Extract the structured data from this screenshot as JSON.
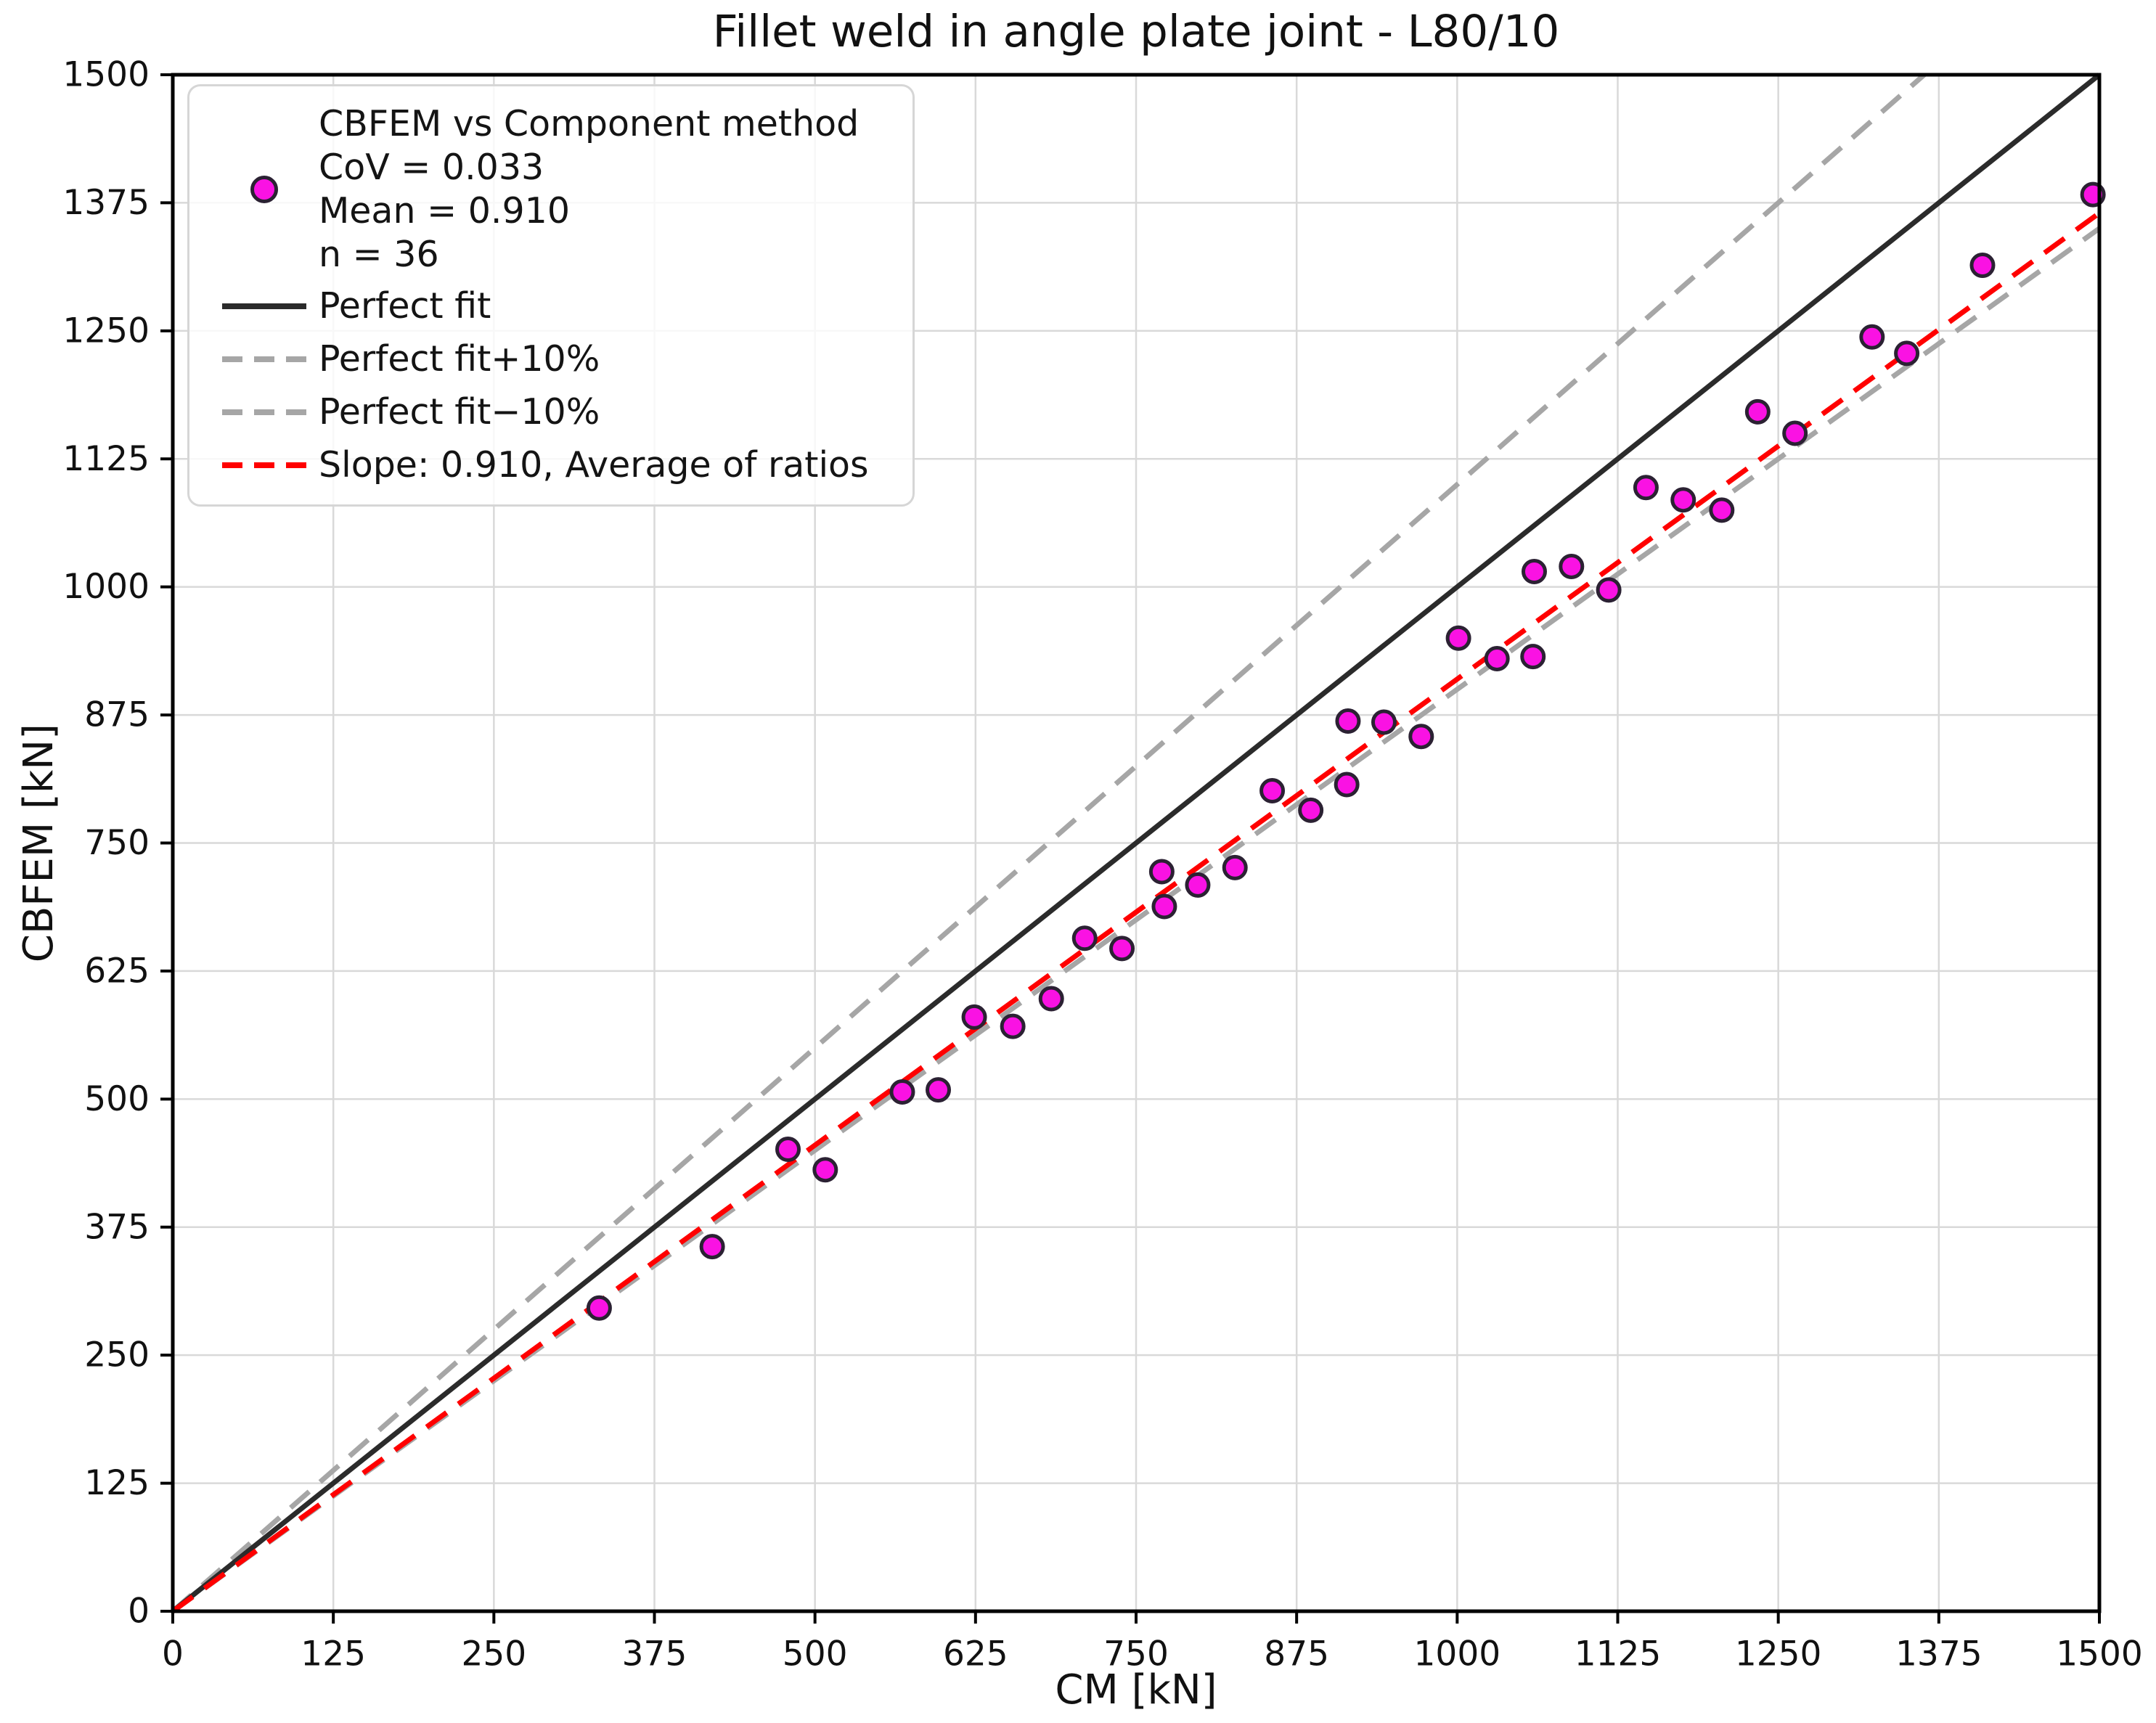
{
  "chart_data": {
    "type": "scatter",
    "title": "Fillet weld in angle plate joint - L80/10",
    "xlabel": "CM [kN]",
    "ylabel": "CBFEM [kN]",
    "xlim": [
      0,
      1500
    ],
    "ylim": [
      0,
      1500
    ],
    "grid": true,
    "x_ticks": [
      0,
      125,
      250,
      375,
      500,
      625,
      750,
      875,
      1000,
      1125,
      1250,
      1375,
      1500
    ],
    "y_ticks": [
      0,
      125,
      250,
      375,
      500,
      625,
      750,
      875,
      1000,
      1125,
      1250,
      1375,
      1500
    ],
    "series": [
      {
        "name": "CBFEM vs Component method",
        "marker": "circle",
        "fill_color": "#fa12e3",
        "edge_color": "#2b2133",
        "points": [
          [
            332,
            296
          ],
          [
            420,
            356
          ],
          [
            479,
            451
          ],
          [
            508,
            431
          ],
          [
            568,
            507
          ],
          [
            596,
            509
          ],
          [
            624,
            580
          ],
          [
            654,
            571
          ],
          [
            684,
            598
          ],
          [
            710,
            657
          ],
          [
            739,
            647
          ],
          [
            770,
            722
          ],
          [
            772,
            688
          ],
          [
            798,
            709
          ],
          [
            827,
            726
          ],
          [
            856,
            801
          ],
          [
            886,
            782
          ],
          [
            914,
            807
          ],
          [
            915,
            869
          ],
          [
            943,
            868
          ],
          [
            972,
            854
          ],
          [
            1001,
            950
          ],
          [
            1031,
            930
          ],
          [
            1059,
            932
          ],
          [
            1060,
            1015
          ],
          [
            1089,
            1020
          ],
          [
            1118,
            997
          ],
          [
            1147,
            1097
          ],
          [
            1176,
            1085
          ],
          [
            1206,
            1075
          ],
          [
            1234,
            1171
          ],
          [
            1263,
            1150
          ],
          [
            1323,
            1244
          ],
          [
            1350,
            1228
          ],
          [
            1409,
            1314
          ],
          [
            1495,
            1383
          ]
        ]
      }
    ],
    "lines": [
      {
        "name": "Perfect fit",
        "slope": 1.0,
        "style": "solid",
        "color": "#2b2b2b"
      },
      {
        "name": "Perfect fit+10%",
        "slope": 1.1,
        "style": "dashed",
        "color": "#a6a6a6"
      },
      {
        "name": "Perfect fit−10%",
        "slope": 0.9,
        "style": "dashed",
        "color": "#a6a6a6"
      },
      {
        "name": "Slope: 0.910, Average of ratios",
        "slope": 0.91,
        "style": "dashed",
        "color": "#ff0000"
      }
    ],
    "legend": {
      "position": "upper left",
      "scatter_label_lines": [
        "CBFEM vs Component method",
        "CoV = 0.033",
        "Mean = 0.910",
        "n = 36"
      ]
    },
    "stats": {
      "cov": "0.033",
      "mean": "0.910",
      "n": "36",
      "slope": "0.910"
    }
  }
}
